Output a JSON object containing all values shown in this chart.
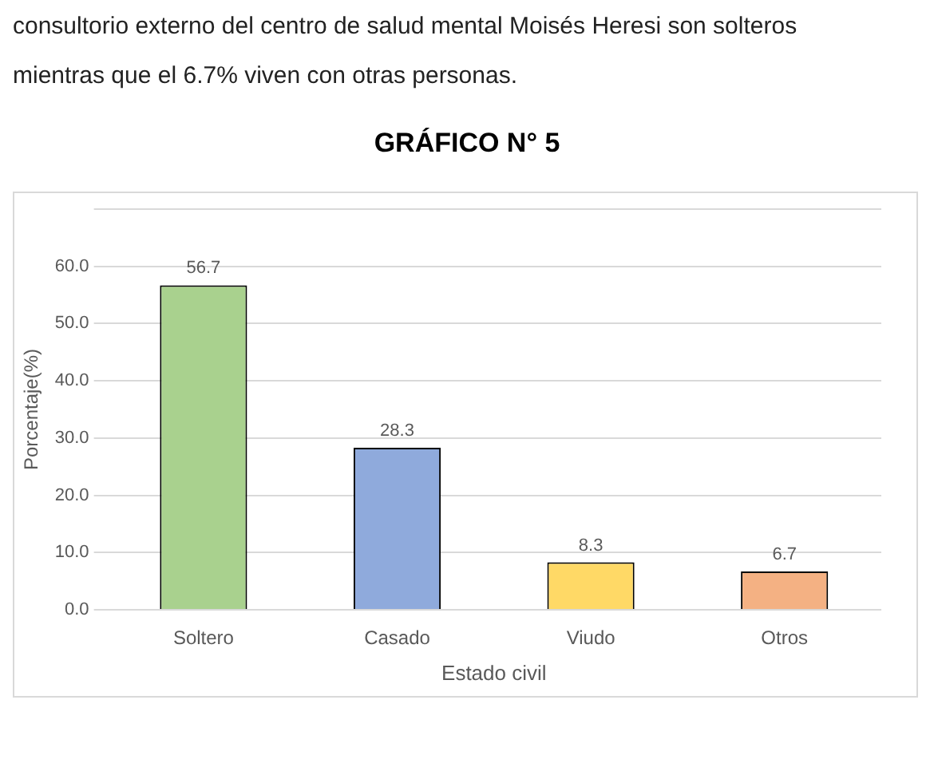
{
  "chart_data": {
    "type": "bar",
    "title": "GRÁFICO N° 5",
    "annotations": [
      "consultorio externo del centro de salud mental Moisés Heresi son solteros",
      "mientras que el 6.7% viven con otras personas."
    ],
    "xlabel": "Estado civil",
    "ylabel": "Porcentaje(%)",
    "categories": [
      "Soltero",
      "Casado",
      "Viudo",
      "Otros"
    ],
    "values": [
      56.7,
      28.3,
      8.3,
      6.7
    ],
    "colors": [
      "#a9d18e",
      "#8faadc",
      "#ffd966",
      "#f4b183"
    ],
    "ylim": [
      0,
      70
    ],
    "yticks": [
      {
        "value": 0,
        "label": "0.0"
      },
      {
        "value": 10,
        "label": "10.0"
      },
      {
        "value": 20,
        "label": "20.0"
      },
      {
        "value": 30,
        "label": "30.0"
      },
      {
        "value": 40,
        "label": "40.0"
      },
      {
        "value": 50,
        "label": "50.0"
      },
      {
        "value": 60,
        "label": "60.0"
      },
      {
        "value": 70,
        "label": null
      }
    ],
    "grid": "y",
    "data_labels": true,
    "legend": false
  }
}
